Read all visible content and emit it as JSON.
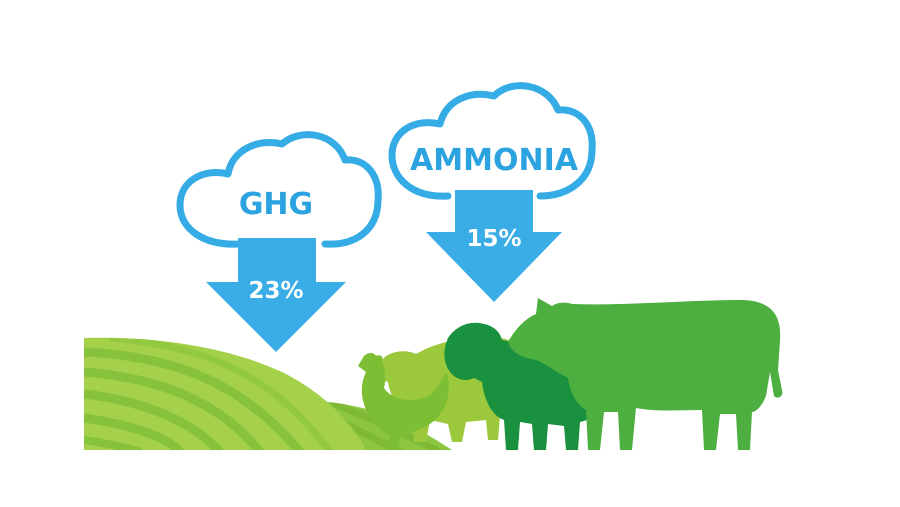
{
  "infographic": {
    "ghg": {
      "label": "GHG",
      "reduction": "23%"
    },
    "ammonia": {
      "label": "AMMONIA",
      "reduction": "15%"
    },
    "animals": [
      "chicken",
      "pig",
      "sheep",
      "cow"
    ]
  },
  "colors": {
    "cloud_outline": "#35ACE6",
    "cloud_text": "#2BA3E0",
    "arrow": "#3AACE6",
    "arrow_text": "#ffffff",
    "field_light": "#9DCD45",
    "field_dark": "#7DBE3A",
    "chicken": "#7CBF34",
    "pig": "#9CC93B",
    "sheep": "#19913E",
    "cow": "#4DAF3F"
  }
}
